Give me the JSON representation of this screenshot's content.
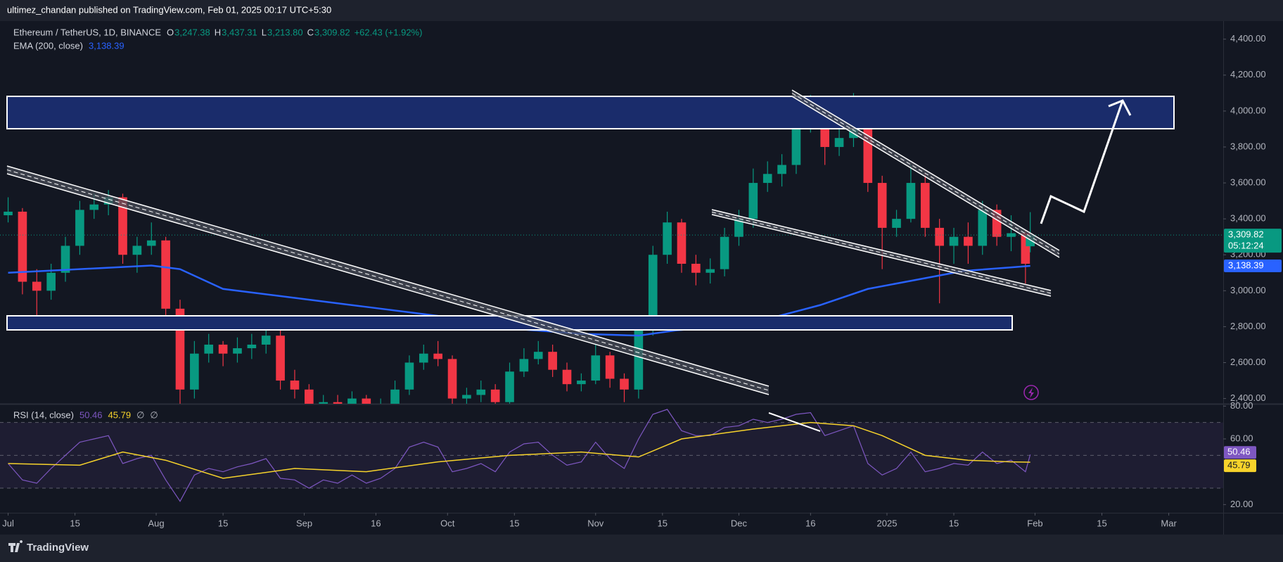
{
  "header": {
    "published": "ultimez_chandan published on TradingView.com, Feb 01, 2025 00:17 UTC+5:30",
    "brand": "TradingView"
  },
  "chart_data": [
    {
      "type": "candlestick",
      "title": "Ethereum / TetherUS, 1D, BINANCE",
      "ohlc": [
        {
          "key": "O",
          "value": "3,247.38"
        },
        {
          "key": "H",
          "value": "3,437.31"
        },
        {
          "key": "L",
          "value": "3,213.80"
        },
        {
          "key": "C",
          "value": "3,309.82"
        }
      ],
      "change": "+62.43 (+1.92%)",
      "color_up": "#089981",
      "color_down": "#f23645",
      "candles": [
        [
          0,
          3420,
          3520,
          3380,
          3440
        ],
        [
          3,
          3440,
          3460,
          2980,
          3050
        ],
        [
          6,
          3050,
          3120,
          2820,
          3000
        ],
        [
          9,
          3000,
          3150,
          2950,
          3100
        ],
        [
          12,
          3100,
          3300,
          3050,
          3250
        ],
        [
          15,
          3250,
          3500,
          3200,
          3450
        ],
        [
          18,
          3450,
          3540,
          3400,
          3480
        ],
        [
          21,
          3480,
          3560,
          3420,
          3520
        ],
        [
          24,
          3520,
          3540,
          3150,
          3200
        ],
        [
          27,
          3200,
          3300,
          3100,
          3250
        ],
        [
          30,
          3250,
          3380,
          3200,
          3280
        ],
        [
          33,
          3280,
          3300,
          2850,
          2900
        ],
        [
          36,
          2900,
          2950,
          2150,
          2450
        ],
        [
          39,
          2450,
          2720,
          2400,
          2650
        ],
        [
          42,
          2650,
          2760,
          2600,
          2700
        ],
        [
          45,
          2700,
          2720,
          2580,
          2650
        ],
        [
          48,
          2650,
          2740,
          2600,
          2680
        ],
        [
          51,
          2680,
          2760,
          2620,
          2700
        ],
        [
          54,
          2700,
          2820,
          2650,
          2750
        ],
        [
          57,
          2750,
          2780,
          2450,
          2500
        ],
        [
          60,
          2500,
          2560,
          2400,
          2450
        ],
        [
          63,
          2450,
          2480,
          2300,
          2330
        ],
        [
          66,
          2330,
          2420,
          2280,
          2380
        ],
        [
          69,
          2380,
          2420,
          2300,
          2350
        ],
        [
          72,
          2350,
          2440,
          2310,
          2400
        ],
        [
          75,
          2400,
          2420,
          2280,
          2320
        ],
        [
          78,
          2320,
          2400,
          2300,
          2350
        ],
        [
          81,
          2350,
          2500,
          2330,
          2450
        ],
        [
          84,
          2450,
          2640,
          2420,
          2600
        ],
        [
          87,
          2600,
          2700,
          2560,
          2650
        ],
        [
          90,
          2650,
          2720,
          2580,
          2620
        ],
        [
          93,
          2620,
          2640,
          2350,
          2400
        ],
        [
          96,
          2400,
          2460,
          2360,
          2420
        ],
        [
          99,
          2420,
          2500,
          2380,
          2450
        ],
        [
          102,
          2450,
          2480,
          2340,
          2380
        ],
        [
          105,
          2380,
          2600,
          2370,
          2550
        ],
        [
          108,
          2550,
          2680,
          2520,
          2620
        ],
        [
          111,
          2620,
          2720,
          2590,
          2660
        ],
        [
          114,
          2660,
          2700,
          2520,
          2560
        ],
        [
          117,
          2560,
          2600,
          2440,
          2480
        ],
        [
          120,
          2480,
          2540,
          2440,
          2500
        ],
        [
          123,
          2500,
          2700,
          2480,
          2640
        ],
        [
          126,
          2640,
          2660,
          2460,
          2510
        ],
        [
          129,
          2510,
          2540,
          2380,
          2450
        ],
        [
          132,
          2450,
          2850,
          2400,
          2780
        ],
        [
          135,
          2780,
          3250,
          2750,
          3200
        ],
        [
          138,
          3200,
          3440,
          3150,
          3380
        ],
        [
          141,
          3380,
          3400,
          3100,
          3150
        ],
        [
          144,
          3150,
          3200,
          3030,
          3100
        ],
        [
          147,
          3100,
          3180,
          3040,
          3120
        ],
        [
          150,
          3120,
          3350,
          3080,
          3300
        ],
        [
          153,
          3300,
          3450,
          3250,
          3400
        ],
        [
          156,
          3400,
          3680,
          3350,
          3600
        ],
        [
          159,
          3600,
          3720,
          3550,
          3650
        ],
        [
          162,
          3650,
          3760,
          3580,
          3700
        ],
        [
          165,
          3700,
          3980,
          3650,
          3920
        ],
        [
          168,
          3920,
          4090,
          3880,
          4000
        ],
        [
          171,
          4000,
          4020,
          3700,
          3800
        ],
        [
          174,
          3800,
          3920,
          3750,
          3850
        ],
        [
          177,
          3850,
          4100,
          3800,
          3950
        ],
        [
          180,
          3950,
          3980,
          3550,
          3600
        ],
        [
          183,
          3600,
          3640,
          3120,
          3350
        ],
        [
          186,
          3350,
          3450,
          3300,
          3400
        ],
        [
          189,
          3400,
          3700,
          3380,
          3600
        ],
        [
          192,
          3600,
          3650,
          3300,
          3350
        ],
        [
          195,
          3350,
          3400,
          2930,
          3250
        ],
        [
          198,
          3250,
          3350,
          3150,
          3300
        ],
        [
          201,
          3300,
          3380,
          3150,
          3250
        ],
        [
          204,
          3250,
          3500,
          3200,
          3450
        ],
        [
          207,
          3450,
          3480,
          3250,
          3300
        ],
        [
          210,
          3300,
          3420,
          3220,
          3320
        ],
        [
          213,
          3320,
          3340,
          3040,
          3150
        ],
        [
          214,
          3247.38,
          3437.31,
          3213.8,
          3309.82
        ]
      ],
      "series": [
        {
          "name": "EMA (200, close)",
          "color": "#2962ff",
          "tag": "3,138.39",
          "x": [
            0,
            30,
            36,
            45,
            60,
            75,
            90,
            105,
            120,
            132,
            140,
            150,
            160,
            170,
            180,
            190,
            200,
            210,
            214
          ],
          "values": [
            3100,
            3140,
            3120,
            3010,
            2960,
            2910,
            2860,
            2790,
            2760,
            2750,
            2780,
            2800,
            2850,
            2920,
            3010,
            3060,
            3110,
            3130,
            3138.39
          ]
        }
      ],
      "last_price": {
        "value": 3309.82,
        "label": "3,309.82",
        "countdown": "05:12:24"
      },
      "xlim": [
        -1.7,
        254.4
      ],
      "xticks": [
        {
          "value": 0,
          "label": "Jul"
        },
        {
          "value": 14,
          "label": "15"
        },
        {
          "value": 31,
          "label": "Aug"
        },
        {
          "value": 45,
          "label": "15"
        },
        {
          "value": 62,
          "label": "Sep"
        },
        {
          "value": 77,
          "label": "16"
        },
        {
          "value": 92,
          "label": "Oct"
        },
        {
          "value": 106,
          "label": "15"
        },
        {
          "value": 123,
          "label": "Nov"
        },
        {
          "value": 137,
          "label": "15"
        },
        {
          "value": 153,
          "label": "Dec"
        },
        {
          "value": 168,
          "label": "16"
        },
        {
          "value": 184,
          "label": "2025"
        },
        {
          "value": 198,
          "label": "15"
        },
        {
          "value": 215,
          "label": "Feb"
        },
        {
          "value": 229,
          "label": "15"
        },
        {
          "value": 243,
          "label": "Mar"
        }
      ],
      "ylim": [
        2371,
        4481
      ],
      "yticks": [
        {
          "value": 2400,
          "label": "2,400.00"
        },
        {
          "value": 2600,
          "label": "2,600.00"
        },
        {
          "value": 2800,
          "label": "2,800.00"
        },
        {
          "value": 3000,
          "label": "3,000.00"
        },
        {
          "value": 3200,
          "label": "3,200.00"
        },
        {
          "value": 3400,
          "label": "3,400.00"
        },
        {
          "value": 3600,
          "label": "3,600.00"
        },
        {
          "value": 3800,
          "label": "3,800.00"
        },
        {
          "value": 4000,
          "label": "4,000.00"
        },
        {
          "value": 4200,
          "label": "4,200.00"
        },
        {
          "value": 4400,
          "label": "4,400.00"
        }
      ]
    },
    {
      "type": "line",
      "title": "RSI (14, close)",
      "na_labels": [
        "∅",
        "∅"
      ],
      "series": [
        {
          "color": "#7e57c2",
          "tag": "50.46",
          "x": [
            0,
            3,
            6,
            9,
            12,
            15,
            18,
            21,
            24,
            27,
            30,
            33,
            36,
            39,
            42,
            45,
            48,
            51,
            54,
            57,
            60,
            63,
            66,
            69,
            72,
            75,
            78,
            81,
            84,
            87,
            90,
            93,
            96,
            99,
            102,
            105,
            108,
            111,
            114,
            117,
            120,
            123,
            126,
            129,
            132,
            135,
            138,
            141,
            144,
            147,
            150,
            153,
            156,
            159,
            162,
            165,
            168,
            171,
            174,
            177,
            180,
            183,
            186,
            189,
            192,
            195,
            198,
            201,
            204,
            207,
            210,
            213,
            214
          ],
          "values": [
            45,
            35,
            33,
            42,
            50,
            58,
            60,
            62,
            45,
            48,
            50,
            35,
            22,
            38,
            42,
            40,
            43,
            45,
            48,
            36,
            35,
            30,
            35,
            33,
            38,
            33,
            36,
            42,
            55,
            58,
            55,
            40,
            42,
            45,
            40,
            52,
            57,
            58,
            50,
            44,
            46,
            58,
            48,
            42,
            60,
            75,
            78,
            65,
            62,
            62,
            67,
            68,
            72,
            70,
            72,
            75,
            76,
            62,
            65,
            68,
            45,
            38,
            42,
            52,
            40,
            42,
            45,
            44,
            52,
            45,
            47,
            40,
            50.46
          ]
        },
        {
          "color": "#f7d32b",
          "tag": "45.79",
          "x": [
            0,
            15,
            24,
            33,
            45,
            60,
            75,
            90,
            105,
            120,
            132,
            141,
            156,
            168,
            177,
            183,
            192,
            201,
            210,
            214
          ],
          "values": [
            45,
            44,
            52,
            47,
            36,
            42,
            40,
            46,
            50,
            52,
            49,
            60,
            66,
            70,
            68,
            62,
            50,
            47,
            46,
            45.79
          ]
        }
      ],
      "bands": [
        70,
        50,
        30
      ],
      "xlim": [
        -1.7,
        254.4
      ],
      "ylim": [
        15,
        81
      ],
      "yticks": [
        {
          "value": 20,
          "label": "20.00"
        },
        {
          "value": 60,
          "label": "60.00"
        },
        {
          "value": 80,
          "label": "80.00"
        }
      ]
    }
  ]
}
